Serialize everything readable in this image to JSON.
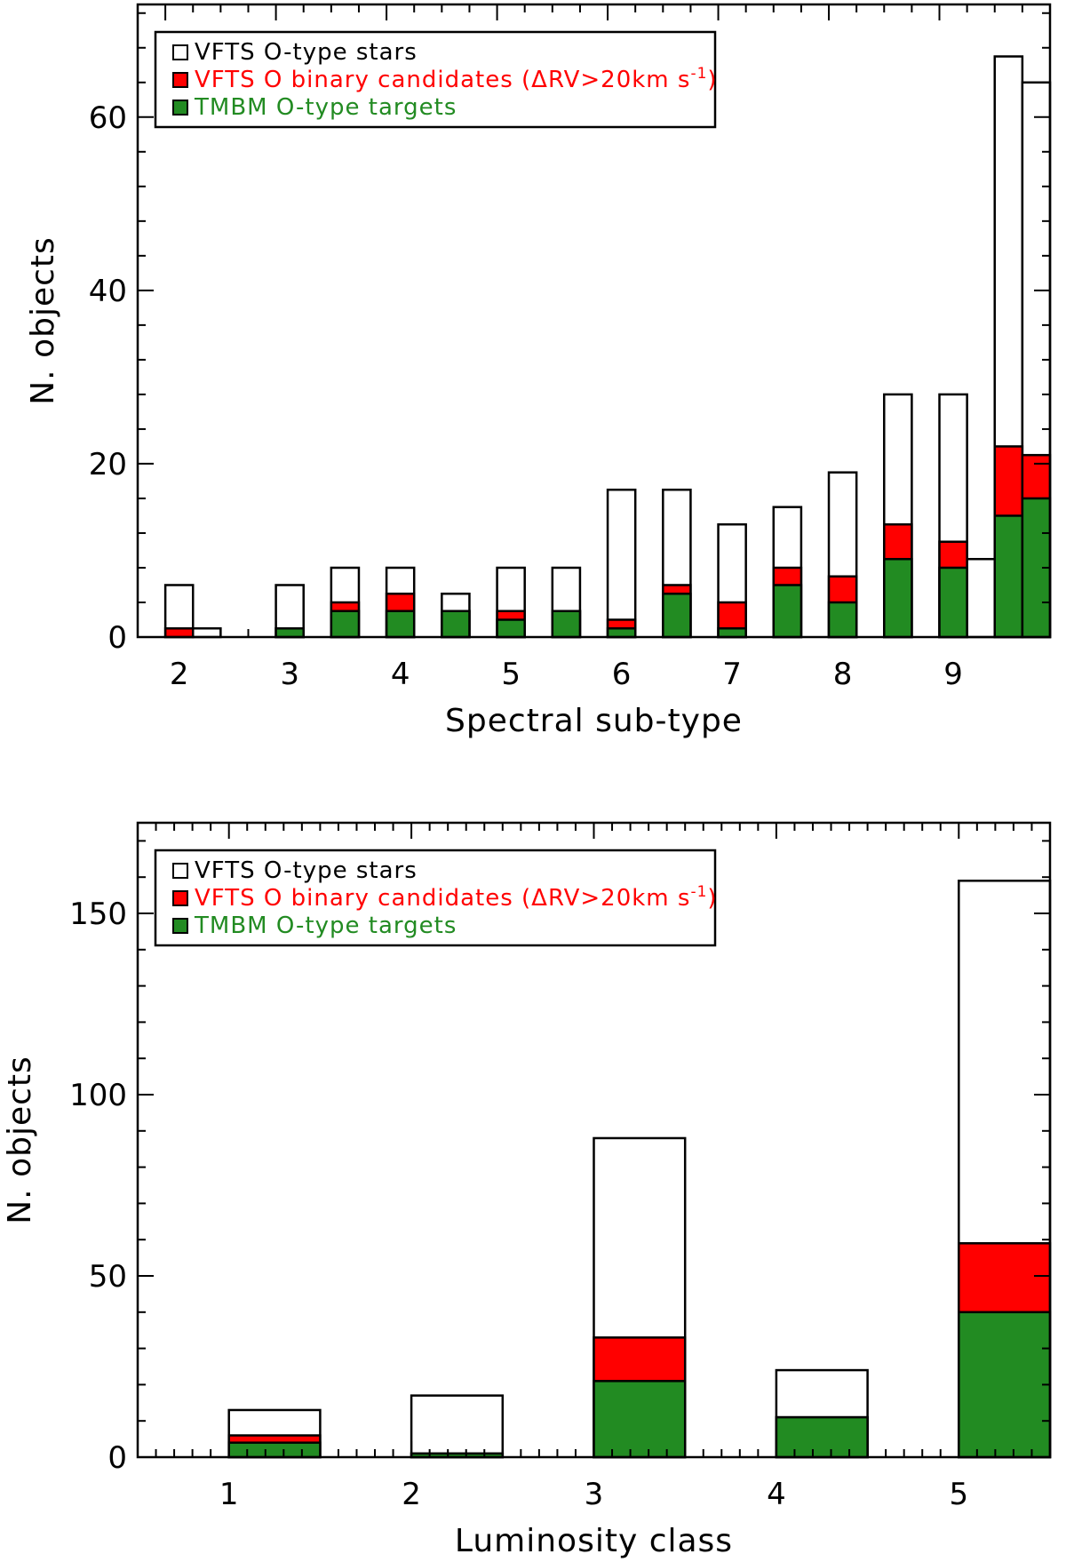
{
  "colors": {
    "total": "#ffffff",
    "binary": "#ff0000",
    "tmbm": "#228b22",
    "outline": "#000000"
  },
  "legend": [
    {
      "label": "VFTS O-type stars",
      "color": "#000000",
      "swatch": "#ffffff"
    },
    {
      "label": "VFTS O binary candidates (ΔRV>20km s",
      "suffix": "-1",
      "close": ")",
      "color": "#ff0000",
      "swatch": "#ff0000"
    },
    {
      "label": "TMBM O-type targets",
      "color": "#228b22",
      "swatch": "#228b22"
    }
  ],
  "chart_data": [
    {
      "type": "bar",
      "stacked_overlay": true,
      "xlabel": "Spectral sub-type",
      "ylabel": "N. objects",
      "xlim": [
        1.75,
        10.0
      ],
      "ylim": [
        0,
        73
      ],
      "xticks": [
        2,
        3,
        4,
        5,
        6,
        7,
        8,
        9
      ],
      "yticks": [
        0,
        20,
        40,
        60
      ],
      "bin_width": 0.25,
      "x": [
        2.0,
        2.25,
        3.0,
        3.5,
        4.0,
        4.5,
        5.0,
        5.5,
        6.0,
        6.5,
        7.0,
        7.5,
        8.0,
        8.5,
        9.0,
        9.25,
        9.5,
        9.75
      ],
      "series": [
        {
          "name": "VFTS O-type stars",
          "values": [
            6,
            1,
            6,
            8,
            8,
            5,
            8,
            8,
            17,
            17,
            13,
            15,
            19,
            28,
            28,
            9,
            67,
            64
          ]
        },
        {
          "name": "VFTS O binary candidates (ΔRV>20km s-1)",
          "values": [
            1,
            0,
            1,
            4,
            5,
            3,
            3,
            3,
            2,
            6,
            4,
            8,
            7,
            13,
            11,
            0,
            22,
            21
          ]
        },
        {
          "name": "TMBM O-type targets",
          "values": [
            0,
            0,
            1,
            3,
            3,
            3,
            2,
            3,
            1,
            5,
            1,
            6,
            4,
            9,
            8,
            0,
            14,
            16
          ]
        }
      ],
      "legend_position": "top-left",
      "grid": false
    },
    {
      "type": "bar",
      "stacked_overlay": true,
      "xlabel": "Luminosity class",
      "ylabel": "N. objects",
      "xlim": [
        0.5,
        5.5
      ],
      "ylim": [
        0,
        175
      ],
      "xticks": [
        1,
        2,
        3,
        4,
        5
      ],
      "yticks": [
        0,
        50,
        100,
        150
      ],
      "bin_width": 0.5,
      "x": [
        1,
        2,
        3,
        4,
        5
      ],
      "series": [
        {
          "name": "VFTS O-type stars",
          "values": [
            13,
            17,
            88,
            24,
            159
          ]
        },
        {
          "name": "VFTS O binary candidates (ΔRV>20km s-1)",
          "values": [
            6,
            1,
            33,
            11,
            59
          ]
        },
        {
          "name": "TMBM O-type targets",
          "values": [
            4,
            1,
            21,
            11,
            40
          ]
        }
      ],
      "legend_position": "top-left",
      "grid": false
    }
  ]
}
